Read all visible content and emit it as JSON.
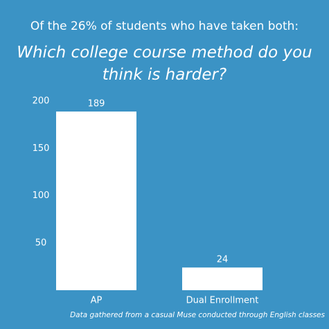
{
  "chart_data": {
    "type": "bar",
    "title": "Of the 26% of students who have taken both:",
    "subtitle": "Which college course method do you think is harder?",
    "categories": [
      "AP",
      "Dual Enrollment"
    ],
    "values": [
      189,
      24
    ],
    "color": "#ffffff",
    "ylim": [
      0,
      200
    ],
    "yticks": [
      50,
      100,
      150,
      200
    ],
    "note": "Data gathered from a casual Muse conducted through English classes"
  }
}
